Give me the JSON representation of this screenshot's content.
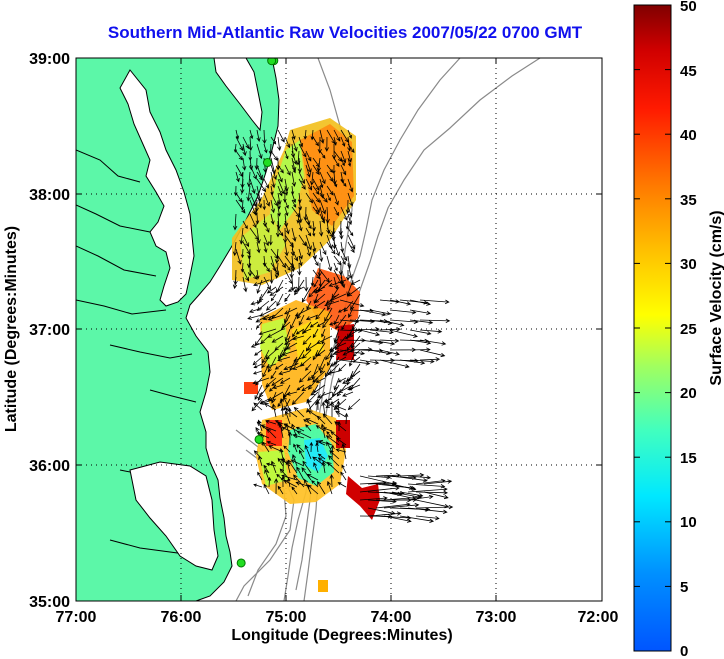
{
  "title": "Southern Mid-Atlantic Raw Velocities 2007/05/22 0700 GMT",
  "xaxis": {
    "label": "Longitude (Degrees:Minutes)",
    "ticks": [
      "77:00",
      "76:00",
      "75:00",
      "74:00",
      "73:00",
      "72:00"
    ],
    "range": [
      -77,
      -72
    ]
  },
  "yaxis": {
    "label": "Latitude (Degrees:Minutes)",
    "ticks": [
      "39:00",
      "38:00",
      "37:00",
      "36:00",
      "35:00"
    ],
    "range": [
      35,
      39
    ]
  },
  "colorbar": {
    "label": "Surface Velocity (cm/s)",
    "ticks": [
      "0",
      "5",
      "10",
      "15",
      "20",
      "25",
      "30",
      "35",
      "40",
      "45",
      "50"
    ],
    "range": [
      0,
      50
    ]
  },
  "grid": "dotted",
  "colors": {
    "land": "#5cf7a8",
    "coastline": "#000000",
    "contours": "#8a8a8a",
    "title": "#1010ee",
    "stations": "#22dd22"
  },
  "stations": [
    {
      "lon": -75.12,
      "lat": 38.98
    },
    {
      "lon": -75.14,
      "lat": 38.98
    },
    {
      "lon": -75.18,
      "lat": 38.23
    },
    {
      "lon": -75.26,
      "lat": 36.19
    },
    {
      "lon": -75.43,
      "lat": 35.28
    }
  ]
}
